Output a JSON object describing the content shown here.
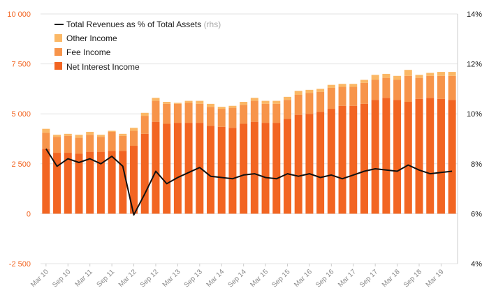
{
  "chart_data": {
    "type": "bar+line",
    "stacked": true,
    "categories": [
      "Mar 10",
      "Jun 10",
      "Sep 10",
      "Dec 10",
      "Mar 11",
      "Jun 11",
      "Sep 11",
      "Dec 11",
      "Mar 12",
      "Jun 12",
      "Sep 12",
      "Dec 12",
      "Mar 13",
      "Jun 13",
      "Sep 13",
      "Dec 13",
      "Mar 14",
      "Jun 14",
      "Sep 14",
      "Dec 14",
      "Mar 15",
      "Jun 15",
      "Sep 15",
      "Dec 15",
      "Mar 16",
      "Jun 16",
      "Sep 16",
      "Dec 16",
      "Mar 17",
      "Jun 17",
      "Sep 17",
      "Dec 17",
      "Mar 18",
      "Jun 18",
      "Sep 18",
      "Dec 18",
      "Mar 19",
      "Jun 19"
    ],
    "x_tick_labels": [
      "Mar 10",
      "Sep 10",
      "Mar 11",
      "Sep 11",
      "Mar 12",
      "Sep 12",
      "Mar 13",
      "Sep 13",
      "Mar 14",
      "Sep 14",
      "Mar 15",
      "Sep 15",
      "Mar 16",
      "Sep 16",
      "Mar 17",
      "Sep 17",
      "Mar 18",
      "Sep 18",
      "Mar 19"
    ],
    "series": [
      {
        "name": "Net Interest Income",
        "color": "#f26522",
        "axis": "left",
        "values": [
          3250,
          3050,
          3050,
          3000,
          3100,
          3100,
          3150,
          3150,
          3400,
          4000,
          4600,
          4500,
          4550,
          4550,
          4550,
          4400,
          4350,
          4300,
          4500,
          4600,
          4550,
          4550,
          4750,
          4950,
          5000,
          5100,
          5250,
          5400,
          5400,
          5500,
          5700,
          5800,
          5700,
          5600,
          5750,
          5800,
          5750,
          5700
        ]
      },
      {
        "name": "Fee Income",
        "color": "#f7944a",
        "axis": "left",
        "values": [
          800,
          800,
          850,
          800,
          850,
          750,
          950,
          750,
          750,
          900,
          1050,
          1000,
          950,
          1000,
          950,
          950,
          900,
          1000,
          950,
          1050,
          950,
          950,
          950,
          1000,
          1050,
          1000,
          1050,
          950,
          950,
          1050,
          1000,
          1000,
          1000,
          1300,
          1050,
          1100,
          1150,
          1200
        ]
      },
      {
        "name": "Other Income",
        "color": "#fbb866",
        "axis": "left",
        "values": [
          200,
          100,
          100,
          150,
          150,
          100,
          50,
          100,
          150,
          150,
          150,
          100,
          50,
          100,
          150,
          150,
          100,
          100,
          150,
          150,
          150,
          150,
          150,
          200,
          150,
          150,
          150,
          150,
          150,
          150,
          250,
          200,
          200,
          300,
          150,
          150,
          200,
          200
        ]
      },
      {
        "name": "Total Revenues as % of Total Assets",
        "color": "#111111",
        "axis": "right",
        "type": "line",
        "values": [
          8.6,
          7.9,
          8.2,
          8.05,
          8.2,
          8.0,
          8.3,
          7.9,
          5.95,
          6.8,
          7.7,
          7.2,
          7.45,
          7.65,
          7.85,
          7.5,
          7.45,
          7.4,
          7.55,
          7.6,
          7.45,
          7.4,
          7.6,
          7.5,
          7.6,
          7.45,
          7.55,
          7.4,
          7.55,
          7.7,
          7.8,
          7.75,
          7.7,
          7.95,
          7.75,
          7.6,
          7.65,
          7.7
        ]
      }
    ],
    "y_left": {
      "min": -2500,
      "max": 10000,
      "ticks": [
        -2500,
        0,
        2500,
        5000,
        7500,
        10000
      ],
      "tick_labels": [
        "-2 500",
        "0",
        "2 500",
        "5 000",
        "7 500",
        "10 000"
      ]
    },
    "y_right": {
      "min": 4,
      "max": 14,
      "ticks": [
        4,
        6,
        8,
        10,
        12,
        14
      ],
      "tick_labels": [
        "4%",
        "6%",
        "8%",
        "10%",
        "12%",
        "14%"
      ]
    },
    "grid": true,
    "legend": {
      "placement": "top-left",
      "items": [
        {
          "label": "Total Revenues as % of Total Assets",
          "suffix": "(rhs)",
          "kind": "line",
          "color": "#111111"
        },
        {
          "label": "Other Income",
          "kind": "box",
          "color": "#fbb866"
        },
        {
          "label": "Fee Income",
          "kind": "box",
          "color": "#f7944a"
        },
        {
          "label": "Net Interest Income",
          "kind": "box",
          "color": "#f26522"
        }
      ]
    }
  }
}
